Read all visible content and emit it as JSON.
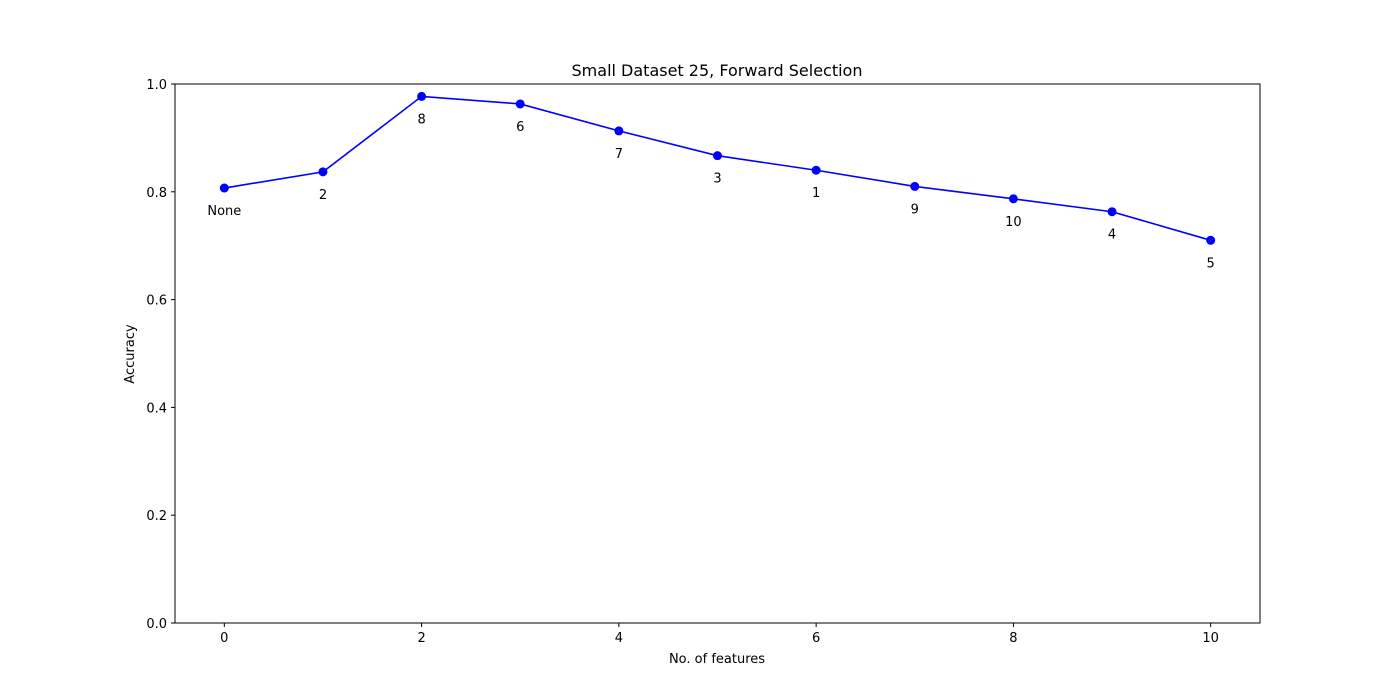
{
  "chart_data": {
    "type": "line",
    "title": "Small Dataset 25, Forward Selection",
    "xlabel": "No. of features",
    "ylabel": "Accuracy",
    "xlim": [
      -0.5,
      10.5
    ],
    "ylim": [
      0.0,
      1.0
    ],
    "xticks": [
      0,
      2,
      4,
      6,
      8,
      10
    ],
    "yticks": [
      0.0,
      0.2,
      0.4,
      0.6,
      0.8,
      1.0
    ],
    "xtick_labels": [
      "0",
      "2",
      "4",
      "6",
      "8",
      "10"
    ],
    "ytick_labels": [
      "0.0",
      "0.2",
      "0.4",
      "0.6",
      "0.8",
      "1.0"
    ],
    "grid": false,
    "series": [
      {
        "color": "#0000ff",
        "x": [
          0,
          1,
          2,
          3,
          4,
          5,
          6,
          7,
          8,
          9,
          10
        ],
        "y": [
          0.807,
          0.837,
          0.977,
          0.963,
          0.913,
          0.867,
          0.84,
          0.81,
          0.787,
          0.763,
          0.71
        ],
        "point_labels": [
          "None",
          "2",
          "8",
          "6",
          "7",
          "3",
          "1",
          "9",
          "10",
          "4",
          "5"
        ]
      }
    ]
  }
}
